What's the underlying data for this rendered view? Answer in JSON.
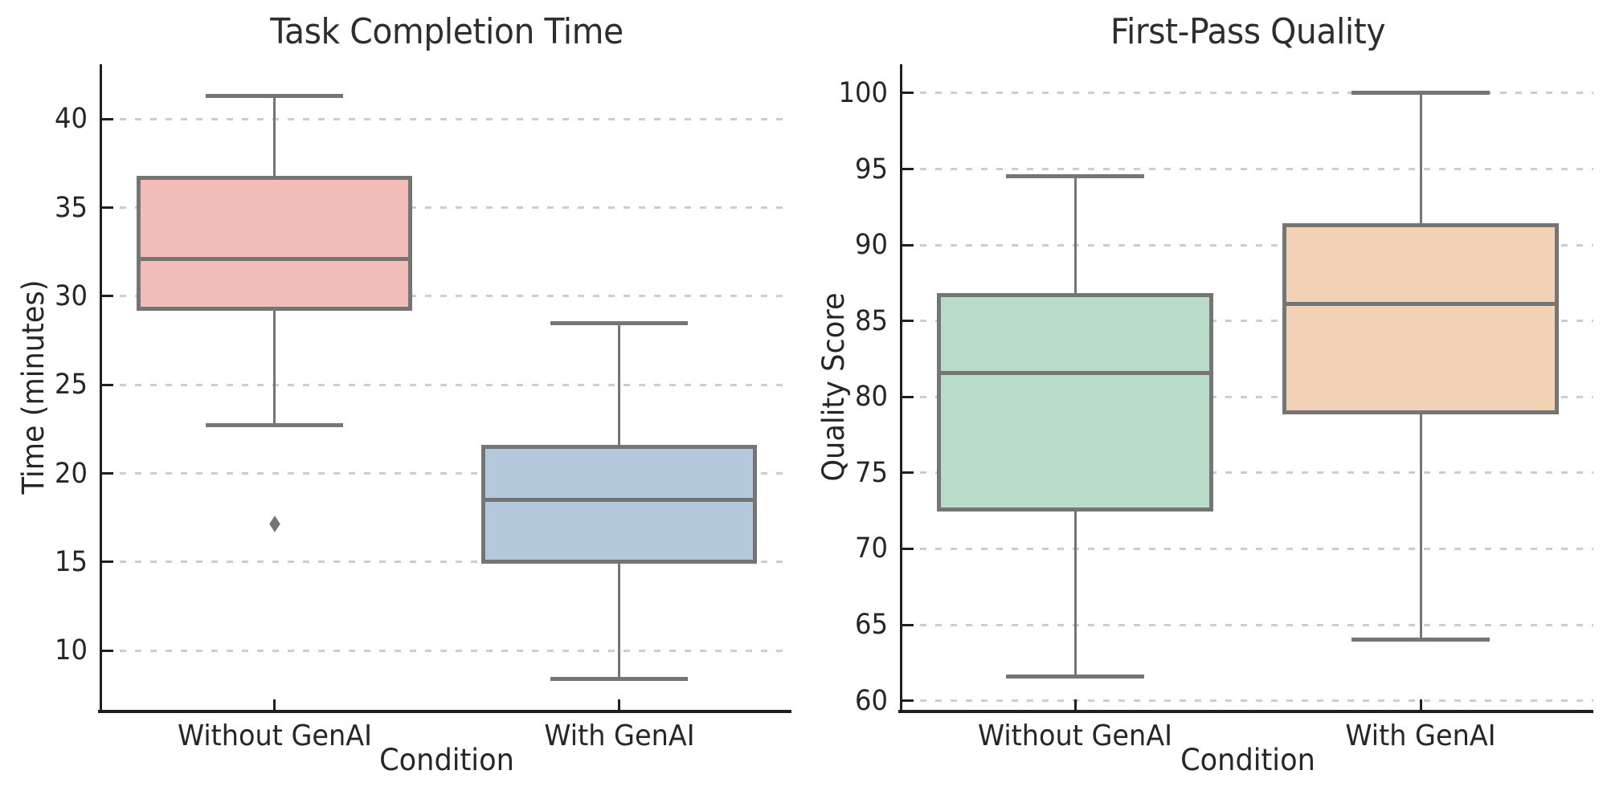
{
  "figure": {
    "background": "#ffffff",
    "panel_count": 2
  },
  "style": {
    "box_line_color": "#757575",
    "outlier_color": "#757575",
    "grid_color": "#cdcdcd",
    "spine_color": "#1f1f1f",
    "text_color": "#262626"
  },
  "chart_data": [
    {
      "type": "box",
      "title": "Task Completion Time",
      "xlabel": "Condition",
      "ylabel": "Time (minutes)",
      "categories": [
        "Without GenAI",
        "With GenAI"
      ],
      "ylim": [
        6.65,
        43.1
      ],
      "yticks": [
        10,
        15,
        20,
        25,
        30,
        35,
        40
      ],
      "grid": "horizontal-dashed",
      "legend": "none",
      "series": [
        {
          "category": "Without GenAI",
          "whisker_low": 22.7,
          "q1": 29.3,
          "median": 32.1,
          "q3": 36.7,
          "whisker_high": 41.3,
          "outliers": [
            17.2
          ],
          "fill": "#f2bdb8"
        },
        {
          "category": "With GenAI",
          "whisker_low": 8.4,
          "q1": 15.0,
          "median": 18.5,
          "q3": 21.5,
          "whisker_high": 28.5,
          "outliers": [],
          "fill": "#b5c9dc"
        }
      ]
    },
    {
      "type": "box",
      "title": "First-Pass Quality",
      "xlabel": "Condition",
      "ylabel": "Quality Score",
      "categories": [
        "Without GenAI",
        "With GenAI"
      ],
      "ylim": [
        59.4,
        101.9
      ],
      "yticks": [
        60,
        65,
        70,
        75,
        80,
        85,
        90,
        95,
        100
      ],
      "grid": "horizontal-dashed",
      "legend": "none",
      "series": [
        {
          "category": "Without GenAI",
          "whisker_low": 61.6,
          "q1": 72.6,
          "median": 81.6,
          "q3": 86.7,
          "whisker_high": 94.5,
          "outliers": [],
          "fill": "#b9dcc9"
        },
        {
          "category": "With GenAI",
          "whisker_low": 64.0,
          "q1": 79.0,
          "median": 86.1,
          "q3": 91.3,
          "whisker_high": 100.0,
          "outliers": [],
          "fill": "#f3d1b4"
        }
      ]
    }
  ]
}
